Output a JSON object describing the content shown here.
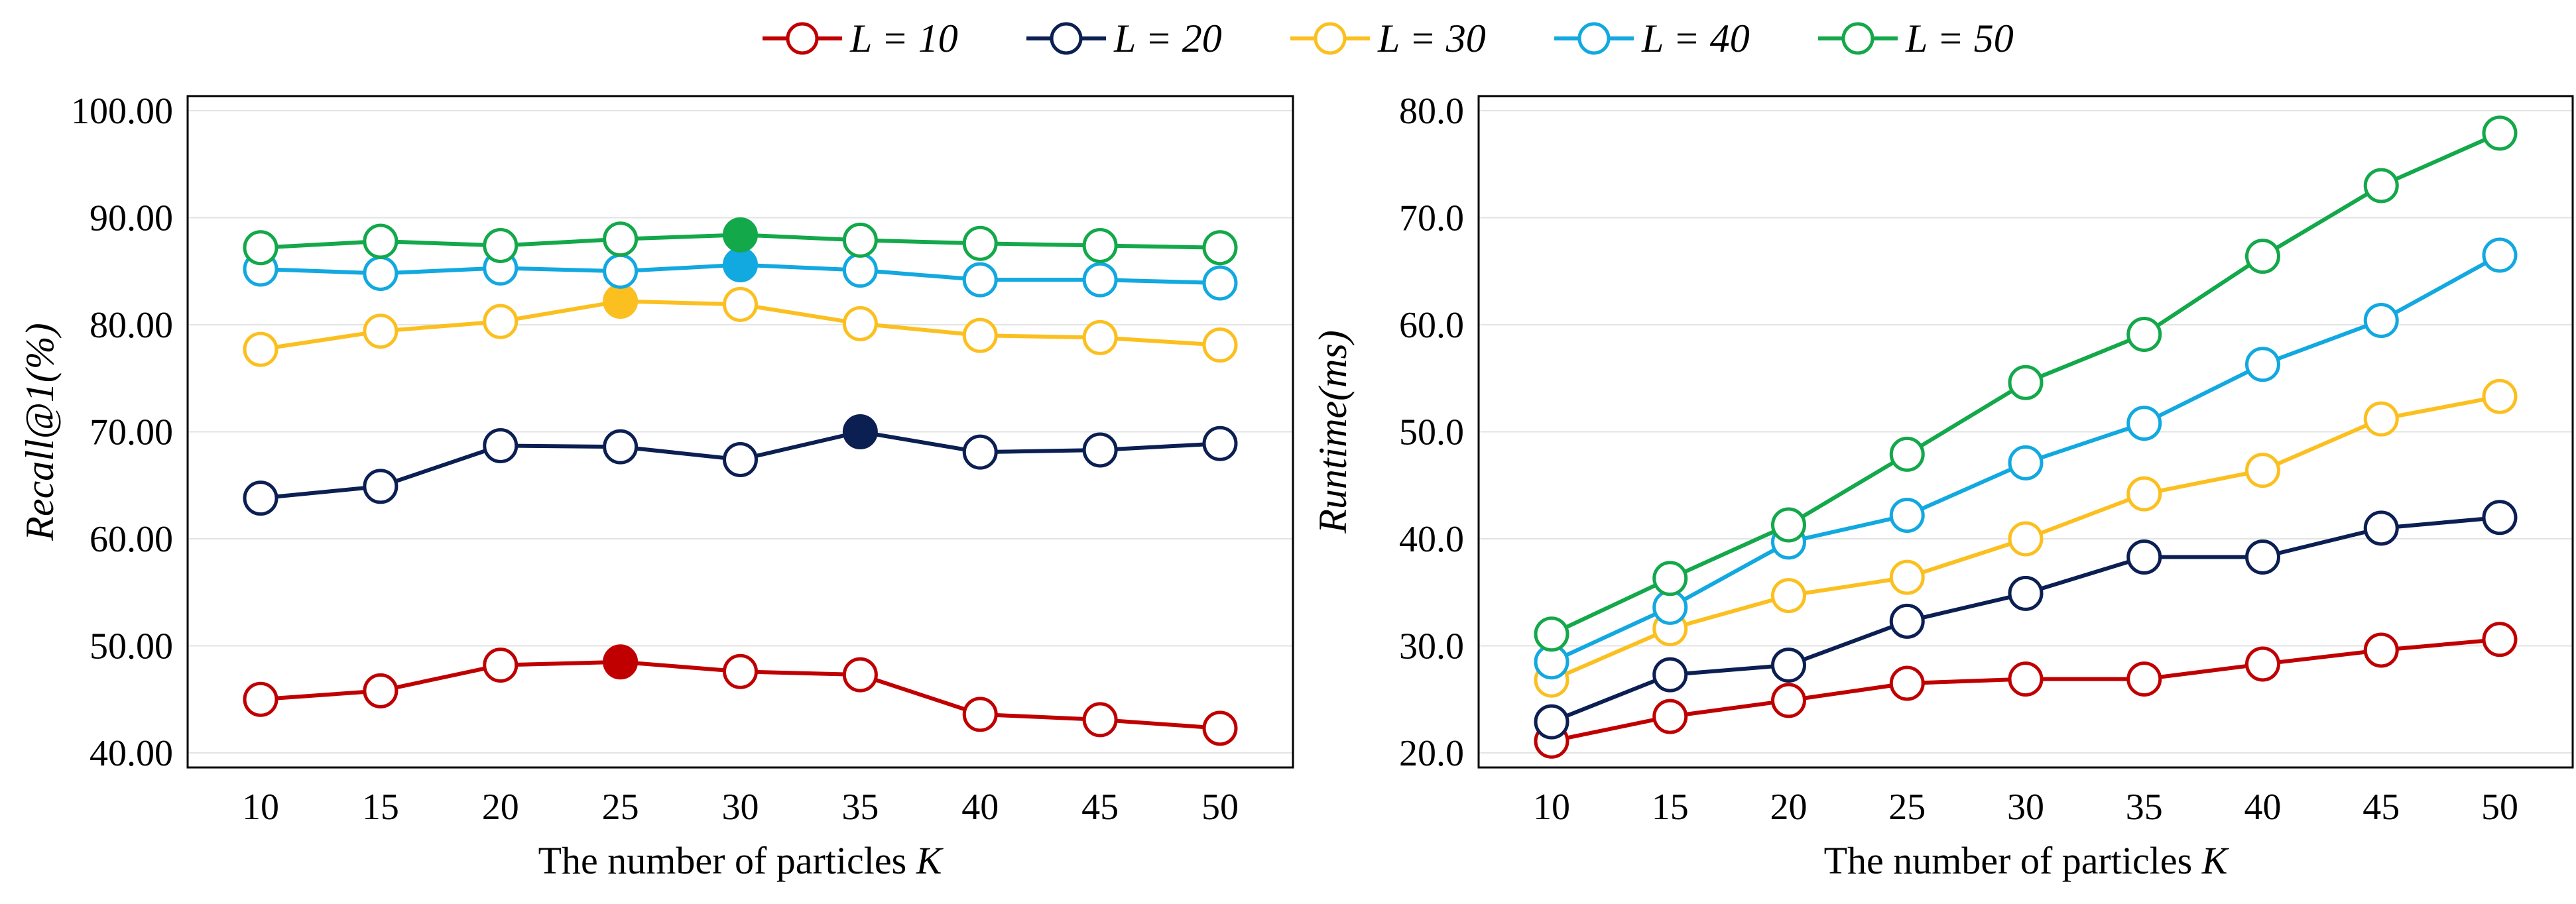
{
  "chart_data": {
    "type": "line",
    "legend": {
      "placement": "top-center",
      "entries": [
        {
          "text": "L = 10",
          "color": "#C00000"
        },
        {
          "text": "L = 20",
          "color": "#0B1F52"
        },
        {
          "text": "L = 30",
          "color": "#FBC020"
        },
        {
          "text": "L = 40",
          "color": "#12A8E0"
        },
        {
          "text": "L = 50",
          "color": "#13A84A"
        }
      ]
    },
    "panels": [
      {
        "title": "",
        "xlabel": "The number of particles",
        "xlabel_var": "K",
        "ylabel": "Recall@1(%)",
        "categories": [
          "10",
          "15",
          "20",
          "25",
          "30",
          "35",
          "40",
          "45",
          "50"
        ],
        "ylim": [
          40,
          100
        ],
        "yticks": [
          "40.00",
          "50.00",
          "60.00",
          "70.00",
          "80.00",
          "90.00",
          "100.00"
        ],
        "grid": true,
        "series": [
          {
            "name": "L = 10",
            "color": "#C00000",
            "values": [
              45.0,
              45.8,
              48.2,
              48.5,
              47.6,
              47.3,
              43.6,
              43.1,
              42.3
            ],
            "best_index": 3
          },
          {
            "name": "L = 20",
            "color": "#0B1F52",
            "values": [
              63.8,
              64.9,
              68.7,
              68.6,
              67.4,
              70.0,
              68.1,
              68.3,
              68.9
            ],
            "best_index": 5
          },
          {
            "name": "L = 30",
            "color": "#FBC020",
            "values": [
              77.7,
              79.4,
              80.3,
              82.2,
              81.9,
              80.1,
              79.0,
              78.8,
              78.1
            ],
            "best_index": 3
          },
          {
            "name": "L = 40",
            "color": "#12A8E0",
            "values": [
              85.2,
              84.8,
              85.3,
              85.0,
              85.6,
              85.1,
              84.2,
              84.2,
              83.9
            ],
            "best_index": 4
          },
          {
            "name": "L = 50",
            "color": "#13A84A",
            "values": [
              87.2,
              87.8,
              87.4,
              88.0,
              88.4,
              87.9,
              87.6,
              87.4,
              87.2
            ],
            "best_index": 4
          }
        ]
      },
      {
        "title": "",
        "xlabel": "The number of particles",
        "xlabel_var": "K",
        "ylabel": "Runtime(ms)",
        "categories": [
          "10",
          "15",
          "20",
          "25",
          "30",
          "35",
          "40",
          "45",
          "50"
        ],
        "ylim": [
          20,
          80
        ],
        "yticks": [
          "20.0",
          "30.0",
          "40.0",
          "50.0",
          "60.0",
          "70.0",
          "80.0"
        ],
        "grid": true,
        "series": [
          {
            "name": "L = 10",
            "color": "#C00000",
            "values": [
              21.1,
              23.4,
              24.9,
              26.5,
              26.9,
              26.9,
              28.3,
              29.6,
              30.6
            ],
            "best_index": null
          },
          {
            "name": "L = 20",
            "color": "#0B1F52",
            "values": [
              22.9,
              27.3,
              28.2,
              32.3,
              34.9,
              38.3,
              38.3,
              41.0,
              42.0
            ],
            "best_index": null
          },
          {
            "name": "L = 30",
            "color": "#FBC020",
            "values": [
              26.8,
              31.6,
              34.7,
              36.4,
              40.0,
              44.2,
              46.4,
              51.2,
              53.3
            ],
            "best_index": null
          },
          {
            "name": "L = 40",
            "color": "#12A8E0",
            "values": [
              28.5,
              33.6,
              39.7,
              42.2,
              47.1,
              50.8,
              56.3,
              60.4,
              66.5
            ],
            "best_index": null
          },
          {
            "name": "L = 50",
            "color": "#13A84A",
            "values": [
              31.1,
              36.3,
              41.3,
              47.9,
              54.6,
              59.1,
              66.4,
              73.0,
              77.9
            ],
            "best_index": null
          }
        ]
      }
    ]
  }
}
